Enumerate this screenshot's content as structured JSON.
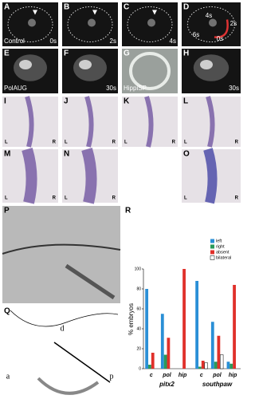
{
  "panels": [
    {
      "label": "A",
      "texts": [
        "Control",
        "0s"
      ]
    },
    {
      "label": "B",
      "texts": [
        "2s"
      ]
    },
    {
      "label": "C",
      "texts": [
        "4s"
      ]
    },
    {
      "label": "D",
      "texts": [
        "4s",
        "2s",
        "6s",
        "0s"
      ]
    },
    {
      "label": "E",
      "texts": [
        "PolAUG"
      ]
    },
    {
      "label": "F",
      "texts": [
        "30s"
      ]
    },
    {
      "label": "G",
      "texts": [
        "HippiSP"
      ]
    },
    {
      "label": "H",
      "texts": [
        "30s"
      ]
    },
    {
      "label": "I",
      "texts": [
        "L",
        "R"
      ]
    },
    {
      "label": "J",
      "texts": [
        "L",
        "R"
      ]
    },
    {
      "label": "K",
      "texts": [
        "L",
        "R"
      ]
    },
    {
      "label": "L",
      "texts": [
        "L",
        "R"
      ]
    },
    {
      "label": "M",
      "texts": [
        "L",
        "R"
      ]
    },
    {
      "label": "N",
      "texts": [
        "L",
        "R"
      ]
    },
    {
      "label": "O",
      "texts": [
        "L",
        "R"
      ]
    },
    {
      "label": "P",
      "texts": []
    },
    {
      "label": "Q",
      "texts": [
        "d",
        "a",
        "p"
      ]
    }
  ],
  "chart_data": {
    "type": "bar",
    "panel_label": "R",
    "y_label": "% embryos",
    "categories": [
      "c",
      "pol",
      "hip",
      "c",
      "pol",
      "hip"
    ],
    "groups": [
      "pitx2",
      "southpaw"
    ],
    "ylim": [
      0,
      100
    ],
    "yticks": [
      0,
      20,
      40,
      60,
      80,
      100
    ],
    "series": [
      {
        "name": "left",
        "color": "#2a8fd6",
        "values": [
          80,
          55,
          0,
          88,
          47,
          7
        ]
      },
      {
        "name": "right",
        "color": "#2a9a5a",
        "values": [
          4,
          14,
          0,
          2,
          7,
          5
        ]
      },
      {
        "name": "absent",
        "color": "#e0302a",
        "values": [
          16,
          31,
          100,
          8,
          33,
          84
        ]
      },
      {
        "name": "bilateral",
        "color": "#ffffff",
        "values": [
          0,
          0,
          0,
          6,
          14,
          0
        ]
      }
    ]
  }
}
